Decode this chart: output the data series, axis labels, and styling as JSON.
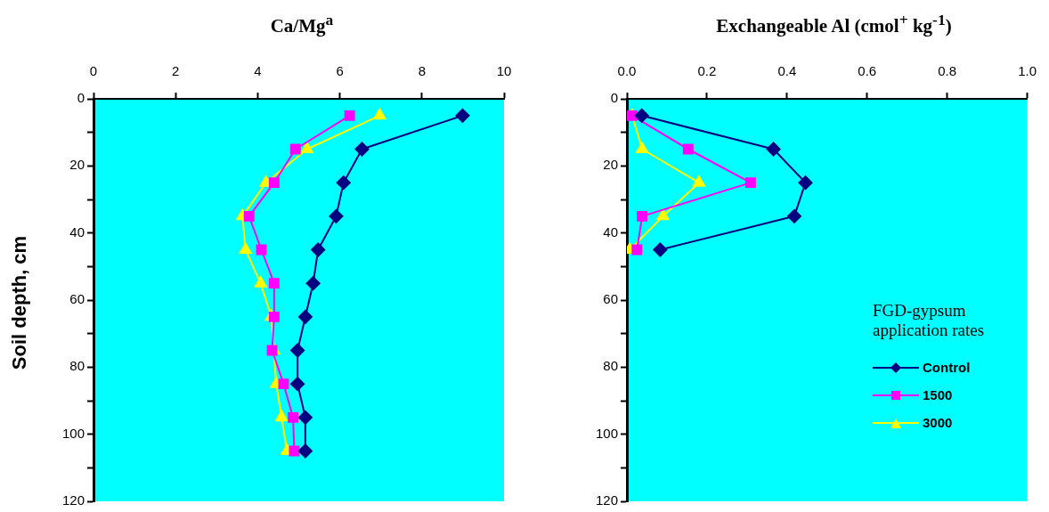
{
  "chart_data": [
    {
      "type": "line",
      "xlabel": "Ca/Mg$^{a}$",
      "ylabel": "Soil depth, cm",
      "xlim": [
        0,
        10
      ],
      "xticks": [
        0,
        2,
        4,
        6,
        8,
        10
      ],
      "ylim": [
        120,
        0
      ],
      "yticks": [
        0,
        {
          "value": 10,
          "label": null
        },
        20,
        {
          "value": 30,
          "label": null
        },
        40,
        {
          "value": 50,
          "label": null
        },
        60,
        {
          "value": 70,
          "label": null
        },
        80,
        {
          "value": 90,
          "label": null
        },
        100,
        {
          "value": 110,
          "label": null
        },
        120
      ],
      "grid": false,
      "legend": false,
      "series": [
        {
          "color": "#000080",
          "marker": "diamond",
          "x": [
            8.99,
            6.54,
            6.09,
            5.91,
            5.47,
            5.35,
            5.16,
            4.97,
            4.97,
            5.16,
            5.16
          ],
          "values": [
            5,
            15,
            25,
            35,
            45,
            55,
            65,
            75,
            85,
            95,
            105
          ]
        },
        {
          "color": "#ff00ff",
          "marker": "square",
          "x": [
            6.24,
            4.92,
            4.4,
            3.79,
            4.09,
            4.4,
            4.4,
            4.35,
            4.63,
            4.86,
            4.89
          ],
          "values": [
            5,
            15,
            25,
            35,
            45,
            55,
            65,
            75,
            85,
            95,
            105
          ]
        },
        {
          "color": "#ffff00",
          "marker": "triangle",
          "x": [
            6.97,
            5.2,
            4.2,
            3.63,
            3.7,
            4.07,
            4.33,
            4.39,
            4.45,
            4.58,
            4.71
          ],
          "values": [
            5,
            15,
            25,
            35,
            45,
            55,
            65,
            75,
            85,
            95,
            105
          ]
        }
      ]
    },
    {
      "type": "line",
      "xlabel": "Exchangeable Al (cmol$^{+}$ kg$^{-1}$)",
      "legend_title": "FGD-gypsum application rates",
      "xlim": [
        0,
        1
      ],
      "xticks": [
        {
          "value": 0,
          "label": "0.0"
        },
        0.2,
        0.4,
        0.6,
        0.8,
        {
          "value": 1,
          "label": "1.0"
        }
      ],
      "ylim": [
        120,
        0
      ],
      "yticks": [
        0,
        {
          "value": 10,
          "label": null
        },
        20,
        {
          "value": 30,
          "label": null
        },
        40,
        {
          "value": 50,
          "label": null
        },
        60,
        {
          "value": 70,
          "label": null
        },
        80,
        {
          "value": 90,
          "label": null
        },
        100,
        {
          "value": 110,
          "label": null
        },
        120
      ],
      "grid": false,
      "legend": "right",
      "series": [
        {
          "name": "Control",
          "color": "#000080",
          "marker": "diamond",
          "x": [
            0.037,
            0.366,
            0.446,
            0.418,
            0.083
          ],
          "values": [
            5,
            15,
            25,
            35,
            45
          ]
        },
        {
          "name": "1500",
          "color": "#ff00ff",
          "marker": "square",
          "x": [
            0.013,
            0.153,
            0.309,
            0.038,
            0.025
          ],
          "values": [
            5,
            15,
            25,
            35,
            45
          ]
        },
        {
          "name": "3000",
          "color": "#ffff00",
          "marker": "triangle",
          "x": [
            0.013,
            0.038,
            0.18,
            0.09,
            0.007
          ],
          "values": [
            5,
            15,
            25,
            35,
            45
          ]
        }
      ]
    }
  ]
}
